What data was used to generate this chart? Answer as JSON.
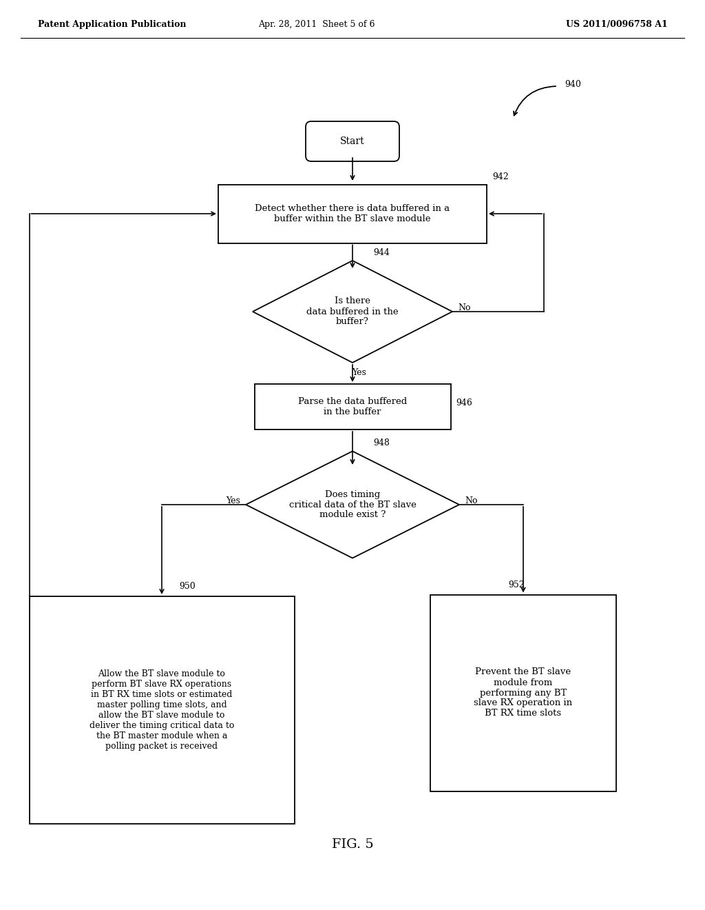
{
  "header_left": "Patent Application Publication",
  "header_mid": "Apr. 28, 2011  Sheet 5 of 6",
  "header_right": "US 2011/0096758 A1",
  "fig_label": "FIG. 5",
  "ref_940": "940",
  "ref_942": "942",
  "ref_944": "944",
  "ref_946": "946",
  "ref_948": "948",
  "ref_950": "950",
  "ref_952": "952",
  "start_text": "Start",
  "box942_text": "Detect whether there is data buffered in a\nbuffer within the BT slave module",
  "diamond944_text": "Is there\ndata buffered in the\nbuffer?",
  "box946_text": "Parse the data buffered\nin the buffer",
  "diamond948_text": "Does timing\ncritical data of the BT slave\nmodule exist ?",
  "box950_text": "Allow the BT slave module to\nperform BT slave RX operations\nin BT RX time slots or estimated\nmaster polling time slots, and\nallow the BT slave module to\ndeliver the timing critical data to\nthe BT master module when a\npolling packet is received",
  "box952_text": "Prevent the BT slave\nmodule from\nperforming any BT\nslave RX operation in\nBT RX time slots",
  "yes_label": "Yes",
  "no_label": "No",
  "bg_color": "#ffffff",
  "line_color": "#000000",
  "text_color": "#000000",
  "header_fontsize": 9,
  "body_fontsize": 9,
  "fig_label_fontsize": 14
}
